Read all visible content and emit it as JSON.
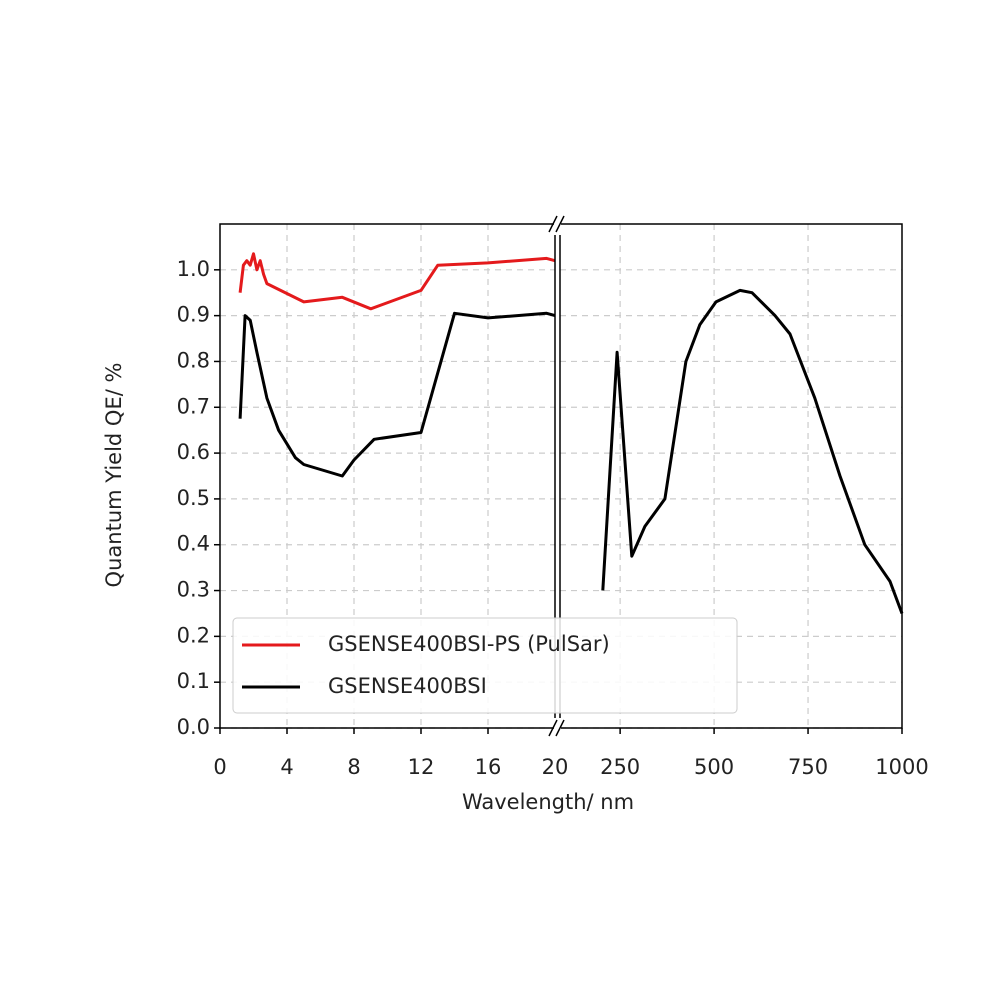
{
  "chart_data": [
    {
      "type": "line",
      "xlabel": "Wavelength/ nm",
      "ylabel": "Quantum Yield QE/ %",
      "xlim": [
        0,
        20
      ],
      "xticks": [
        0,
        4,
        8,
        12,
        16,
        20
      ],
      "ylim": [
        0,
        1.1
      ],
      "yticks": [
        {
          "value": 0,
          "label": "0.0"
        },
        0.1,
        0.2,
        0.3,
        0.4,
        0.5,
        0.6,
        0.7,
        0.8,
        0.9,
        {
          "value": 1,
          "label": "1.0"
        }
      ],
      "grid": true,
      "legend": "lower left",
      "series": [
        {
          "name": "GSENSE400BSI-PS (PulSar)",
          "color": "#e41a1c",
          "x": [
            1.2,
            1.4,
            1.6,
            1.8,
            2.0,
            2.2,
            2.4,
            2.6,
            2.8,
            5,
            7.3,
            9,
            12,
            13,
            16,
            19.5,
            20
          ],
          "values": [
            0.95,
            1.01,
            1.02,
            1.01,
            1.035,
            1.0,
            1.02,
            0.99,
            0.97,
            0.93,
            0.94,
            0.915,
            0.955,
            1.01,
            1.015,
            1.025,
            1.02
          ]
        },
        {
          "name": "GSENSE400BSI",
          "color": "#000000",
          "x": [
            1.2,
            1.5,
            1.8,
            2.2,
            2.8,
            3.5,
            4.5,
            5,
            7.3,
            8,
            9.2,
            12,
            14,
            16,
            19.5,
            20
          ],
          "values": [
            0.675,
            0.9,
            0.89,
            0.82,
            0.72,
            0.65,
            0.59,
            0.575,
            0.55,
            0.585,
            0.63,
            0.645,
            0.905,
            0.895,
            0.905,
            0.9
          ]
        }
      ]
    },
    {
      "type": "line",
      "xlim": [
        90,
        1000
      ],
      "xticks": [
        250,
        500,
        750,
        1000
      ],
      "grid": true,
      "series": [
        {
          "color": "#000000",
          "x": [
            204,
            242,
            281,
            316,
            369,
            425,
            462,
            505,
            569,
            601,
            662,
            702,
            768,
            835,
            901,
            968,
            1000
          ],
          "values": [
            0.3,
            0.82,
            0.375,
            0.44,
            0.5,
            0.8,
            0.88,
            0.93,
            0.955,
            0.95,
            0.9,
            0.86,
            0.72,
            0.55,
            0.4,
            0.32,
            0.25
          ]
        }
      ]
    }
  ]
}
